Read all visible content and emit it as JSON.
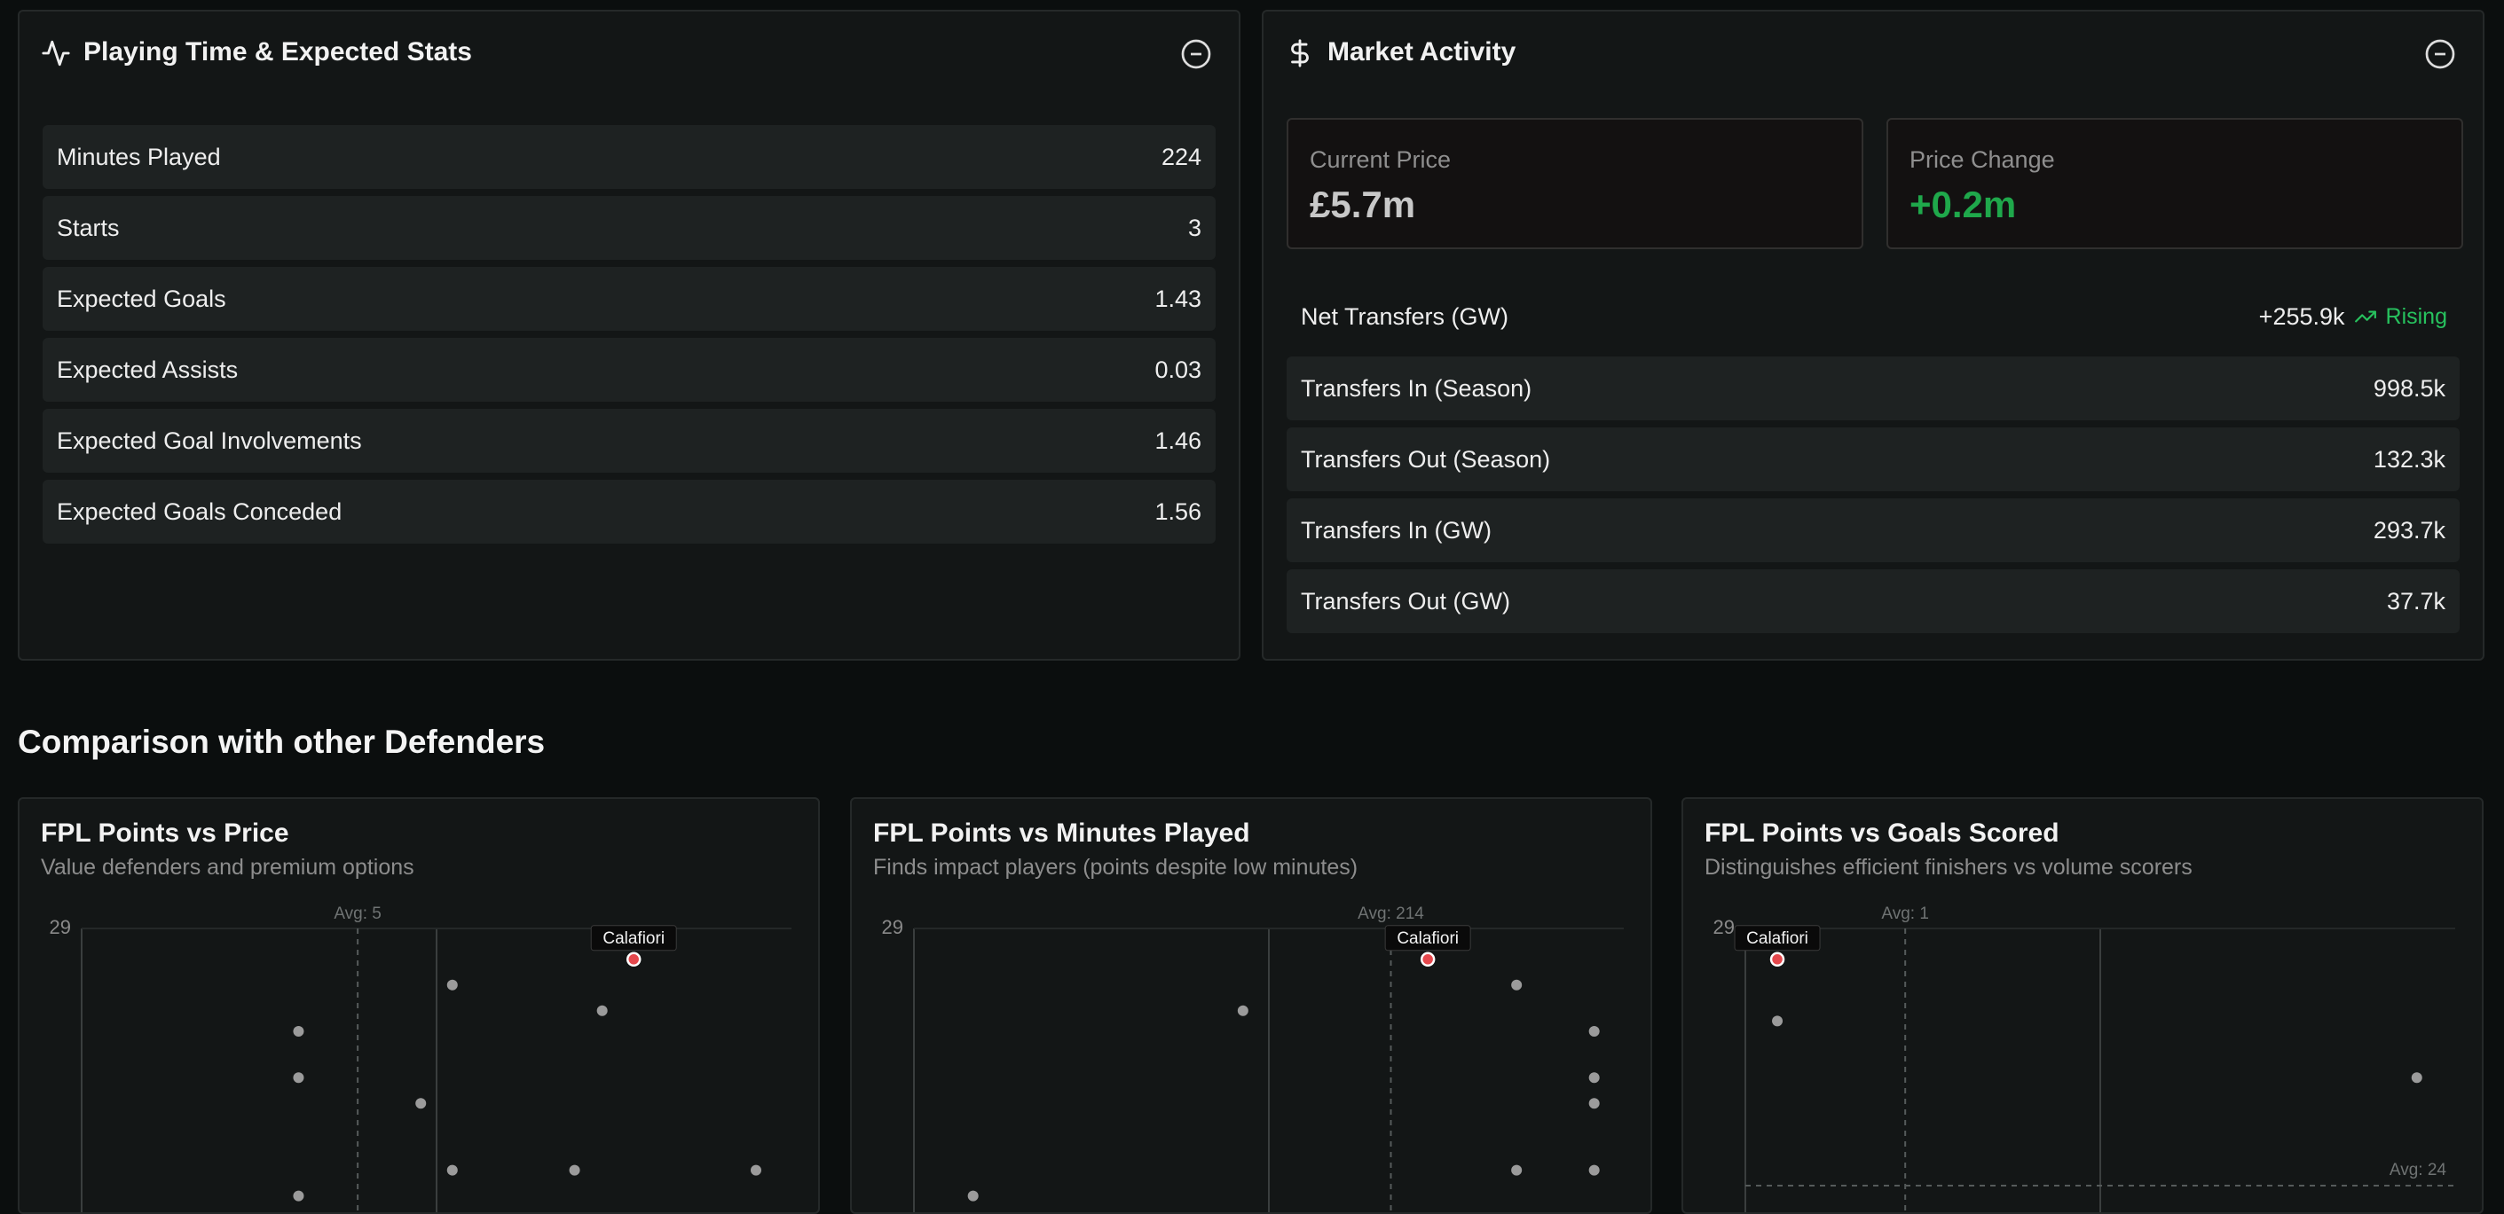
{
  "playing_time": {
    "title": "Playing Time & Expected Stats",
    "rows": [
      {
        "label": "Minutes Played",
        "value": 224
      },
      {
        "label": "Starts",
        "value": 3
      },
      {
        "label": "Expected Goals",
        "value": 1.43
      },
      {
        "label": "Expected Assists",
        "value": 0.03
      },
      {
        "label": "Expected Goal Involvements",
        "value": 1.46
      },
      {
        "label": "Expected Goals Conceded",
        "value": 1.56
      }
    ]
  },
  "market": {
    "title": "Market Activity",
    "current_price": {
      "label": "Current Price",
      "value": "£5.7m"
    },
    "price_change": {
      "label": "Price Change",
      "value": "+0.2m"
    },
    "net_transfers": {
      "label": "Net Transfers (GW)",
      "value": "+255.9k",
      "trend": "Rising"
    },
    "rows": [
      {
        "label": "Transfers In (Season)",
        "value": "998.5k"
      },
      {
        "label": "Transfers Out (Season)",
        "value": "132.3k"
      },
      {
        "label": "Transfers In (GW)",
        "value": "293.7k"
      },
      {
        "label": "Transfers Out (GW)",
        "value": "37.7k"
      }
    ]
  },
  "comparison_title": "Comparison with other Defenders",
  "chart_data": [
    {
      "type": "scatter",
      "title": "FPL Points vs Price",
      "subtitle": "Value defenders and premium options",
      "xlim": [
        4.3,
        6.1
      ],
      "ylim": [
        23,
        29
      ],
      "yticks": [
        29
      ],
      "avg_x": {
        "value": 5,
        "label": "Avg: 5"
      },
      "series": [
        {
          "name": "Calafiori",
          "color": "#e5484d",
          "x": [
            5.7
          ],
          "y": [
            28.4
          ]
        },
        {
          "color": "#9b9b9b",
          "x": [
            4.85,
            4.85,
            4.85,
            5.24,
            5.16,
            5.62,
            5.24,
            5.55,
            6.01
          ],
          "y": [
            27,
            26.1,
            23.8,
            27.9,
            25.6,
            27.4,
            24.3,
            24.3,
            24.3
          ]
        }
      ]
    },
    {
      "type": "scatter",
      "title": "FPL Points vs Minutes Played",
      "subtitle": "Finds impact players (points despite low minutes)",
      "xlim": [
        85,
        277
      ],
      "ylim": [
        23,
        29
      ],
      "yticks": [
        29
      ],
      "avg_x": {
        "value": 214,
        "label": "Avg: 214"
      },
      "series": [
        {
          "name": "Calafiori",
          "color": "#e5484d",
          "x": [
            224
          ],
          "y": [
            28.4
          ]
        },
        {
          "color": "#9b9b9b",
          "x": [
            101,
            174,
            248,
            269,
            269,
            269,
            269,
            248
          ],
          "y": [
            23.8,
            27.4,
            27.9,
            27,
            26.1,
            25.6,
            24.3,
            24.3
          ]
        }
      ]
    },
    {
      "type": "scatter",
      "title": "FPL Points vs Goals Scored",
      "subtitle": "Distinguishes efficient finishers vs volume scorers",
      "xlim": [
        -0.25,
        5.3
      ],
      "ylim": [
        23,
        29
      ],
      "yticks": [
        29
      ],
      "avg_x": {
        "value": 1,
        "label": "Avg: 1"
      },
      "avg_y": {
        "value": 24,
        "label": "Avg: 24"
      },
      "series": [
        {
          "name": "Calafiori",
          "color": "#e5484d",
          "x": [
            0
          ],
          "y": [
            28.4
          ]
        },
        {
          "color": "#9b9b9b",
          "x": [
            0,
            5
          ],
          "y": [
            27.2,
            26.1
          ]
        }
      ]
    }
  ]
}
